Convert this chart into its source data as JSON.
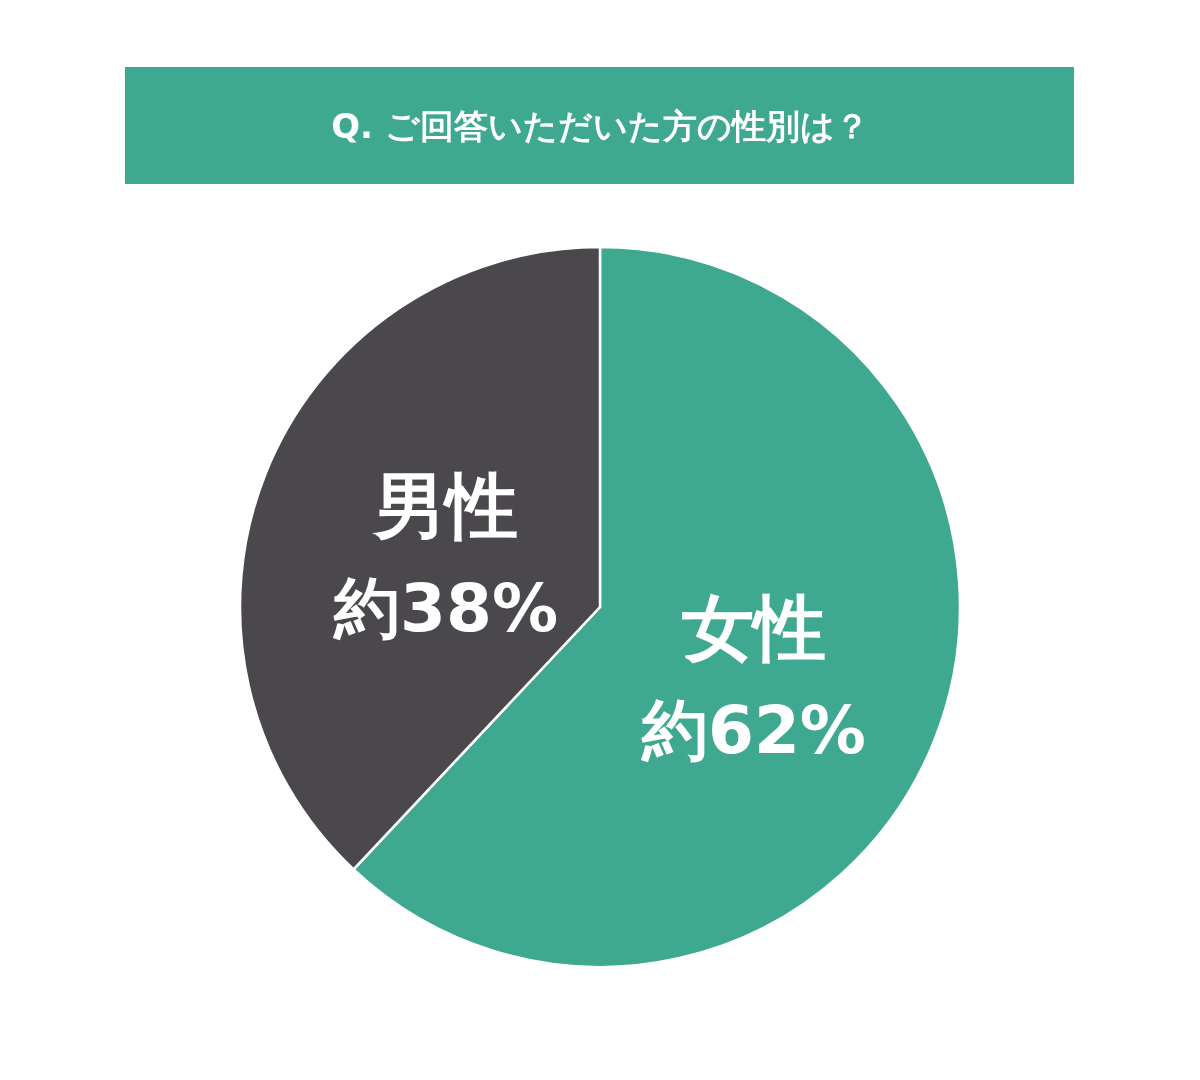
{
  "chart_data": {
    "type": "pie",
    "title": "Q. ご回答いただいた方の性別は？",
    "categories": [
      "女性",
      "男性"
    ],
    "values": [
      62,
      38
    ],
    "colors": [
      "#3fa891",
      "#4a484c"
    ],
    "value_labels": [
      "約62%",
      "約38%"
    ]
  }
}
